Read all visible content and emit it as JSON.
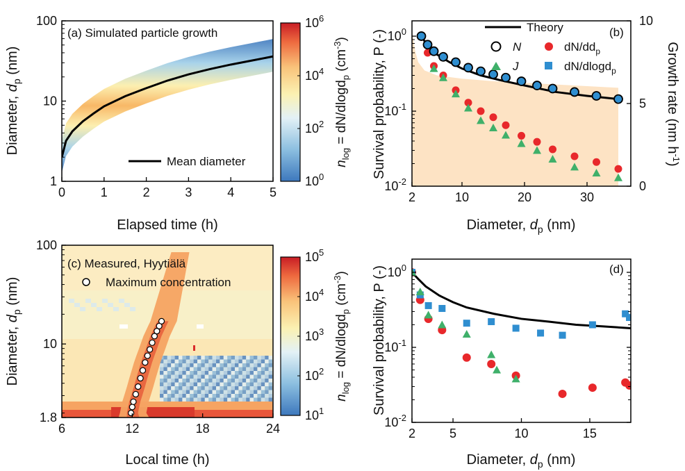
{
  "panels": {
    "a": {
      "annotation": "(a) Simulated particle growth",
      "legend": "Mean diameter",
      "xlabel": "Elapsed time (h)",
      "ylabel_main": "Diameter, ",
      "ylabel_var": "d",
      "ylabel_sub": "p",
      "ylabel_unit": " (nm)",
      "colorbar_label_pre": "n",
      "colorbar_label_sub": "log",
      "colorbar_label_mid": " = dN/dlogd",
      "colorbar_label_sub2": "p",
      "colorbar_label_unit": " (cm",
      "colorbar_label_exp": "-3",
      "colorbar_label_end": ")"
    },
    "b": {
      "annotation": "(b)",
      "xlabel_main": "Diameter, ",
      "xlabel_var": "d",
      "xlabel_sub": "p",
      "xlabel_unit": " (nm)",
      "ylabel_left": "Survival probability, P (-)",
      "ylabel_right_main": "Growth rate (nm h",
      "ylabel_right_exp": "-1",
      "ylabel_right_end": ")",
      "legend": {
        "theory": "Theory",
        "N": "N",
        "dNdd": "dN/dd",
        "dNdd_sub": "p",
        "J": "J",
        "dNdlog": "dN/dlogd",
        "dNdlog_sub": "p"
      }
    },
    "c": {
      "annotation": "(c) Measured, Hyytiälä",
      "legend": "Maximum concentration",
      "xlabel": "Local time (h)",
      "ylabel_main": "Diameter, ",
      "ylabel_var": "d",
      "ylabel_sub": "p",
      "ylabel_unit": " (nm)"
    },
    "d": {
      "annotation": "(d)",
      "xlabel_main": "Diameter, ",
      "xlabel_var": "d",
      "xlabel_sub": "p",
      "xlabel_unit": " (nm)",
      "ylabel": "Survival probability, P (-)"
    }
  },
  "colors": {
    "red": "#e8282b",
    "green": "#3fb06a",
    "blue": "#2f8ed0",
    "growth_fill": "#fde3c4",
    "line": "#000000"
  },
  "chart_data": [
    {
      "id": "a",
      "type": "heatmap",
      "xlim": [
        0,
        5
      ],
      "ylim": [
        1,
        100
      ],
      "ylog": true,
      "xticks": [
        0,
        1,
        2,
        3,
        4,
        5
      ],
      "yticks": [
        1,
        10,
        100
      ],
      "colorbar": {
        "range": [
          1,
          1000000
        ],
        "ticks": [
          "10^0",
          "10^2",
          "10^4",
          "10^6"
        ]
      },
      "mean_diameter": {
        "x": [
          0,
          0.1,
          0.25,
          0.5,
          0.75,
          1,
          1.5,
          2,
          2.5,
          3,
          3.5,
          4,
          4.5,
          5
        ],
        "y": [
          2,
          3.2,
          4.2,
          5.6,
          7.0,
          8.6,
          11.5,
          14.5,
          18,
          21.5,
          25,
          28.5,
          32,
          36
        ]
      }
    },
    {
      "id": "b",
      "type": "scatter",
      "xlim": [
        2,
        37
      ],
      "ylim": [
        0.01,
        1.6
      ],
      "ylog": true,
      "xticks": [
        2,
        10,
        20,
        30
      ],
      "yticks": [
        "10^-2",
        "10^-1",
        "10^0"
      ],
      "y2lim": [
        0,
        10
      ],
      "y2ticks": [
        0,
        5,
        10
      ],
      "growth_rate": {
        "x": [
          2,
          2.5,
          3,
          4,
          6,
          10,
          15,
          20,
          25,
          30,
          35
        ],
        "y": [
          9.4,
          8.2,
          7.5,
          7.0,
          6.7,
          6.5,
          6.35,
          6.25,
          6.15,
          6.05,
          5.95
        ]
      },
      "series": [
        {
          "name": "Theory",
          "x": [
            3.5,
            4.5,
            6,
            8,
            10,
            13,
            16,
            20,
            25,
            30,
            35
          ],
          "y": [
            1.0,
            0.74,
            0.57,
            0.45,
            0.37,
            0.3,
            0.26,
            0.22,
            0.18,
            0.16,
            0.145
          ]
        },
        {
          "name": "N",
          "x": [
            3.5,
            4.5,
            5.5,
            7,
            9,
            11,
            13,
            15,
            17,
            19.5,
            22,
            24.5,
            28,
            31.5,
            35
          ],
          "y": [
            1.0,
            0.77,
            0.63,
            0.53,
            0.45,
            0.38,
            0.34,
            0.31,
            0.28,
            0.25,
            0.22,
            0.2,
            0.18,
            0.16,
            0.145
          ]
        },
        {
          "name": "dN/dlogdp",
          "x": [
            3.5,
            4.5,
            5.5,
            7,
            9,
            11,
            13,
            15,
            17,
            19.5,
            22,
            24.5,
            28,
            31.5,
            35
          ],
          "y": [
            1.0,
            0.77,
            0.63,
            0.53,
            0.45,
            0.38,
            0.34,
            0.31,
            0.28,
            0.25,
            0.22,
            0.2,
            0.18,
            0.16,
            0.145
          ]
        },
        {
          "name": "dN/ddp",
          "x": [
            3.5,
            4.5,
            5.5,
            7,
            9,
            11,
            13,
            15,
            17,
            19.5,
            22,
            24.5,
            28,
            31.5,
            35
          ],
          "y": [
            1.0,
            0.6,
            0.4,
            0.3,
            0.19,
            0.13,
            0.1,
            0.083,
            0.065,
            0.047,
            0.039,
            0.031,
            0.025,
            0.021,
            0.017
          ]
        },
        {
          "name": "J",
          "x": [
            5.5,
            7,
            9,
            11,
            13,
            15,
            17,
            19.5,
            22,
            24.5,
            28,
            31.5,
            35
          ],
          "y": [
            0.37,
            0.28,
            0.17,
            0.11,
            0.075,
            0.06,
            0.048,
            0.037,
            0.03,
            0.023,
            0.018,
            0.015,
            0.013
          ]
        }
      ]
    },
    {
      "id": "c",
      "type": "heatmap",
      "xlim": [
        6,
        24
      ],
      "ylim": [
        1.8,
        100
      ],
      "ylog": true,
      "xticks": [
        6,
        12,
        18,
        24
      ],
      "yticks": [
        1.8,
        10,
        100
      ],
      "colorbar": {
        "range": [
          10,
          100000
        ],
        "ticks": [
          "10^1",
          "10^2",
          "10^3",
          "10^4",
          "10^5"
        ]
      },
      "maximum_concentration": {
        "x": [
          11.9,
          12.0,
          12.1,
          12.3,
          12.5,
          12.7,
          12.9,
          13.1,
          13.3,
          13.5,
          13.7,
          13.9,
          14.1,
          14.3,
          14.5
        ],
        "y": [
          2.0,
          2.3,
          2.6,
          3.1,
          3.7,
          4.5,
          5.4,
          6.5,
          7.6,
          8.8,
          10.3,
          12.0,
          13.5,
          15.2,
          17.0
        ]
      }
    },
    {
      "id": "d",
      "type": "scatter",
      "xlim": [
        2,
        18
      ],
      "ylim": [
        0.01,
        1.5
      ],
      "ylog": true,
      "xticks": [
        2,
        5,
        10,
        15
      ],
      "yticks": [
        "10^-2",
        "10^-1",
        "10^0"
      ],
      "series": [
        {
          "name": "Theory",
          "x": [
            2,
            2.5,
            3,
            4,
            5,
            6,
            8,
            10,
            12,
            14,
            16,
            18
          ],
          "y": [
            1.0,
            0.8,
            0.65,
            0.49,
            0.4,
            0.34,
            0.28,
            0.24,
            0.22,
            0.2,
            0.19,
            0.18
          ]
        },
        {
          "name": "dN/dlogdp",
          "x": [
            2,
            2.6,
            3.2,
            4.2,
            6,
            7.8,
            9.6,
            11.4,
            13,
            15.2,
            17.6,
            17.9
          ],
          "y": [
            1.0,
            0.5,
            0.36,
            0.33,
            0.21,
            0.22,
            0.18,
            0.155,
            0.145,
            0.2,
            0.28,
            0.25
          ]
        },
        {
          "name": "dN/ddp",
          "x": [
            2,
            2.6,
            3.2,
            4.2,
            6,
            7.8,
            9.6,
            13,
            15.2,
            17.6,
            17.9
          ],
          "y": [
            1.0,
            0.43,
            0.24,
            0.17,
            0.073,
            0.06,
            0.042,
            0.024,
            0.029,
            0.034,
            0.031
          ]
        },
        {
          "name": "J",
          "x": [
            2,
            2.6,
            3.2,
            4.2,
            6,
            7.8,
            8.2,
            9.6
          ],
          "y": [
            1.0,
            0.55,
            0.27,
            0.2,
            0.15,
            0.08,
            0.05,
            0.038
          ]
        }
      ]
    }
  ]
}
